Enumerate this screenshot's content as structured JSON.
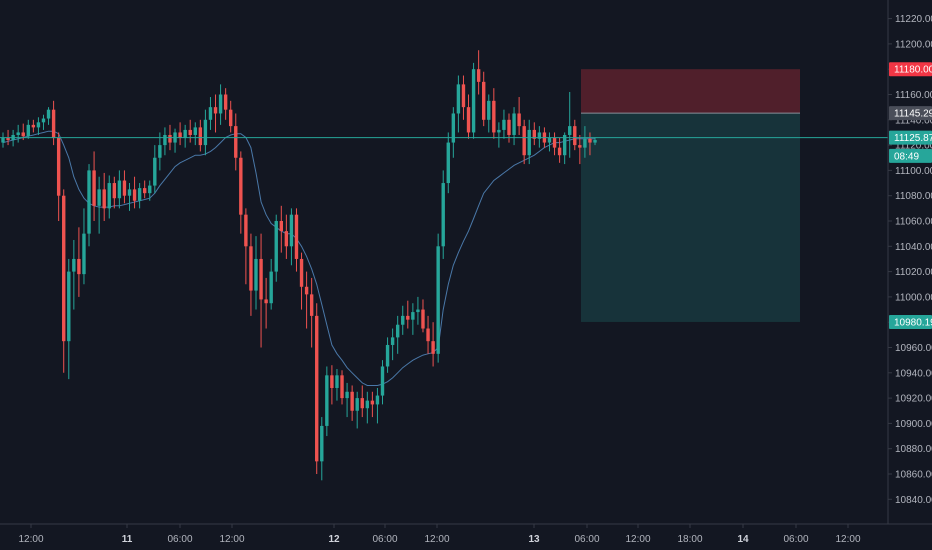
{
  "chart_data": {
    "type": "candlestick",
    "ylim": [
      10826,
      11232
    ],
    "y_ticks": [
      10840,
      10860,
      10880,
      10900,
      10920,
      10940,
      10960,
      10980,
      11000,
      11020,
      11040,
      11060,
      11080,
      11100,
      11120,
      11140,
      11160,
      11180,
      11200,
      11220
    ],
    "y_tick_labels": [
      "10840.00",
      "10860.00",
      "10880.00",
      "10900.00",
      "10920.00",
      "10940.00",
      "10960.00",
      "10980.00",
      "11000.00",
      "11020.00",
      "11040.00",
      "11060.00",
      "11080.00",
      "11100.00",
      "11120.00",
      "11140.00",
      "11160.00",
      "11180.00",
      "11200.00",
      "11220.00"
    ],
    "x_ticks": [
      {
        "label": "12:00",
        "bold": false
      },
      {
        "label": "11",
        "bold": true
      },
      {
        "label": "06:00",
        "bold": false
      },
      {
        "label": "12:00",
        "bold": false
      },
      {
        "label": "12",
        "bold": true
      },
      {
        "label": "06:00",
        "bold": false
      },
      {
        "label": "12:00",
        "bold": false
      },
      {
        "label": "13",
        "bold": true
      },
      {
        "label": "06:00",
        "bold": false
      },
      {
        "label": "12:00",
        "bold": false
      },
      {
        "label": "18:00",
        "bold": false
      },
      {
        "label": "14",
        "bold": true
      },
      {
        "label": "06:00",
        "bold": false
      },
      {
        "label": "12:00",
        "bold": false
      }
    ],
    "candles": [
      [
        11122,
        11130,
        11118,
        11126
      ],
      [
        11126,
        11132,
        11120,
        11124
      ],
      [
        11124,
        11132,
        11119,
        11128
      ],
      [
        11128,
        11136,
        11122,
        11130
      ],
      [
        11130,
        11137,
        11124,
        11127
      ],
      [
        11127,
        11140,
        11125,
        11136
      ],
      [
        11136,
        11140,
        11130,
        11134
      ],
      [
        11134,
        11142,
        11128,
        11138
      ],
      [
        11138,
        11144,
        11132,
        11141
      ],
      [
        11141,
        11150,
        11136,
        11148
      ],
      [
        11148,
        11155,
        11120,
        11126
      ],
      [
        11126,
        11130,
        11060,
        11080
      ],
      [
        11080,
        11085,
        10940,
        10965
      ],
      [
        10965,
        11030,
        10935,
        11020
      ],
      [
        11020,
        11045,
        10990,
        11030
      ],
      [
        11030,
        11055,
        11000,
        11018
      ],
      [
        11018,
        11070,
        11010,
        11050
      ],
      [
        11050,
        11105,
        11040,
        11100
      ],
      [
        11100,
        11115,
        11060,
        11072
      ],
      [
        11072,
        11095,
        11050,
        11085
      ],
      [
        11085,
        11098,
        11060,
        11070
      ],
      [
        11070,
        11096,
        11062,
        11090
      ],
      [
        11090,
        11095,
        11070,
        11078
      ],
      [
        11078,
        11100,
        11070,
        11092
      ],
      [
        11092,
        11100,
        11074,
        11080
      ],
      [
        11080,
        11090,
        11068,
        11085
      ],
      [
        11085,
        11095,
        11070,
        11076
      ],
      [
        11076,
        11090,
        11070,
        11086
      ],
      [
        11086,
        11092,
        11078,
        11082
      ],
      [
        11082,
        11092,
        11076,
        11088
      ],
      [
        11088,
        11120,
        11082,
        11110
      ],
      [
        11110,
        11130,
        11100,
        11120
      ],
      [
        11120,
        11134,
        11112,
        11128
      ],
      [
        11128,
        11136,
        11116,
        11122
      ],
      [
        11122,
        11133,
        11114,
        11130
      ],
      [
        11130,
        11138,
        11120,
        11126
      ],
      [
        11126,
        11136,
        11118,
        11132
      ],
      [
        11132,
        11140,
        11122,
        11128
      ],
      [
        11128,
        11138,
        11120,
        11134
      ],
      [
        11134,
        11140,
        11115,
        11120
      ],
      [
        11120,
        11148,
        11112,
        11140
      ],
      [
        11140,
        11158,
        11132,
        11150
      ],
      [
        11150,
        11160,
        11130,
        11145
      ],
      [
        11145,
        11168,
        11136,
        11160
      ],
      [
        11160,
        11165,
        11140,
        11148
      ],
      [
        11148,
        11155,
        11130,
        11135
      ],
      [
        11135,
        11145,
        11100,
        11110
      ],
      [
        11110,
        11115,
        11050,
        11065
      ],
      [
        11065,
        11070,
        11010,
        11040
      ],
      [
        11040,
        11050,
        10985,
        11005
      ],
      [
        11005,
        11048,
        10990,
        11030
      ],
      [
        11030,
        11050,
        10960,
        10998
      ],
      [
        10998,
        11015,
        10975,
        10995
      ],
      [
        10995,
        11030,
        10990,
        11020
      ],
      [
        11020,
        11065,
        11012,
        11060
      ],
      [
        11060,
        11072,
        11035,
        11052
      ],
      [
        11052,
        11065,
        11030,
        11040
      ],
      [
        11040,
        11070,
        11025,
        11065
      ],
      [
        11065,
        11070,
        11020,
        11030
      ],
      [
        11030,
        11035,
        10990,
        11008
      ],
      [
        11008,
        11020,
        10975,
        11002
      ],
      [
        11002,
        11015,
        10960,
        10985
      ],
      [
        10985,
        10995,
        10860,
        10870
      ],
      [
        10870,
        10905,
        10855,
        10898
      ],
      [
        10898,
        10945,
        10890,
        10938
      ],
      [
        10938,
        10946,
        10915,
        10928
      ],
      [
        10928,
        10943,
        10918,
        10938
      ],
      [
        10938,
        10942,
        10915,
        10920
      ],
      [
        10920,
        10932,
        10905,
        10925
      ],
      [
        10925,
        10930,
        10902,
        10910
      ],
      [
        10910,
        10925,
        10896,
        10920
      ],
      [
        10920,
        10930,
        10905,
        10912
      ],
      [
        10912,
        10925,
        10900,
        10918
      ],
      [
        10918,
        10925,
        10905,
        10915
      ],
      [
        10915,
        10928,
        10900,
        10922
      ],
      [
        10922,
        10950,
        10915,
        10945
      ],
      [
        10945,
        10968,
        10940,
        10962
      ],
      [
        10962,
        10975,
        10950,
        10968
      ],
      [
        10968,
        10985,
        10955,
        10978
      ],
      [
        10978,
        10993,
        10970,
        10985
      ],
      [
        10985,
        10997,
        10975,
        10982
      ],
      [
        10982,
        10995,
        10970,
        10988
      ],
      [
        10988,
        11000,
        10978,
        10990
      ],
      [
        10990,
        10998,
        10972,
        10975
      ],
      [
        10975,
        10985,
        10955,
        10965
      ],
      [
        10965,
        10980,
        10945,
        10955
      ],
      [
        10955,
        11050,
        10948,
        11040
      ],
      [
        11040,
        11100,
        11030,
        11090
      ],
      [
        11090,
        11130,
        11082,
        11122
      ],
      [
        11122,
        11150,
        11110,
        11145
      ],
      [
        11145,
        11175,
        11130,
        11168
      ],
      [
        11168,
        11175,
        11140,
        11150
      ],
      [
        11150,
        11160,
        11125,
        11130
      ],
      [
        11130,
        11185,
        11125,
        11180
      ],
      [
        11180,
        11195,
        11160,
        11170
      ],
      [
        11170,
        11178,
        11135,
        11140
      ],
      [
        11140,
        11160,
        11130,
        11155
      ],
      [
        11155,
        11165,
        11125,
        11130
      ],
      [
        11130,
        11138,
        11118,
        11132
      ],
      [
        11132,
        11148,
        11125,
        11140
      ],
      [
        11140,
        11145,
        11122,
        11128
      ],
      [
        11128,
        11150,
        11120,
        11145
      ],
      [
        11145,
        11158,
        11128,
        11135
      ],
      [
        11135,
        11140,
        11105,
        11112
      ],
      [
        11112,
        11140,
        11105,
        11132
      ],
      [
        11132,
        11138,
        11120,
        11125
      ],
      [
        11125,
        11135,
        11118,
        11130
      ],
      [
        11130,
        11134,
        11118,
        11122
      ],
      [
        11122,
        11130,
        11115,
        11126
      ],
      [
        11126,
        11130,
        11112,
        11118
      ],
      [
        11118,
        11126,
        11106,
        11112
      ],
      [
        11112,
        11130,
        11105,
        11128
      ],
      [
        11128,
        11162,
        11110,
        11135
      ],
      [
        11135,
        11140,
        11116,
        11120
      ],
      [
        11120,
        11128,
        11105,
        11118
      ],
      [
        11118,
        11135,
        11110,
        11125
      ],
      [
        11125,
        11130,
        11112,
        11122
      ],
      [
        11122,
        11126,
        11120,
        11124
      ]
    ],
    "ma_line": [
      11122,
      11123,
      11124,
      11125,
      11126,
      11127,
      11128,
      11129,
      11130,
      11131,
      11131,
      11129,
      11120,
      11110,
      11095,
      11085,
      11078,
      11074,
      11072,
      11071,
      11071,
      11071,
      11072,
      11072,
      11073,
      11074,
      11075,
      11076,
      11077,
      11078,
      11082,
      11088,
      11093,
      11098,
      11103,
      11106,
      11108,
      11110,
      11112,
      11112,
      11113,
      11115,
      11118,
      11122,
      11126,
      11128,
      11129,
      11129,
      11126,
      11118,
      11098,
      11075,
      11065,
      11058,
      11055,
      11052,
      11050,
      11050,
      11046,
      11040,
      11032,
      11022,
      11010,
      10994,
      10978,
      10962,
      10955,
      10950,
      10944,
      10940,
      10936,
      10932,
      10930,
      10930,
      10930,
      10931,
      10933,
      10936,
      10940,
      10944,
      10947,
      10950,
      10952,
      10954,
      10955,
      10956,
      10960,
      10990,
      11010,
      11025,
      11035,
      11044,
      11052,
      11062,
      11072,
      11082,
      11087,
      11092,
      11095,
      11098,
      11101,
      11104,
      11106,
      11108,
      11110,
      11112,
      11115,
      11118,
      11120,
      11122,
      11122,
      11123,
      11124,
      11125,
      11125,
      11125,
      11125,
      11125
    ],
    "last_price": 11125.87,
    "position": {
      "entry": 11145.29,
      "stop": 11180.0,
      "target": 10980.19
    },
    "price_labels": [
      {
        "text": "11180.00",
        "value": 11180.0,
        "color": "#f23645"
      },
      {
        "text": "11145.29",
        "value": 11145.29,
        "color": "#4a4e59"
      },
      {
        "text": "11125.87",
        "value": 11125.87,
        "color": "#26a69a"
      },
      {
        "text": "08:49",
        "value": 11111.5,
        "color": "#26a69a"
      },
      {
        "text": "10980.19",
        "value": 10980.19,
        "color": "#26a69a"
      }
    ],
    "colors": {
      "background": "#131722",
      "up": "#26a69a",
      "down": "#ef5350",
      "ma": "#4a78a8",
      "price_line": "#26a69a",
      "risk_fill": "rgba(242,54,69,0.28)",
      "reward_fill": "rgba(38,166,154,0.20)",
      "axis_text": "#b2b5be",
      "axis_line": "#363a45"
    }
  }
}
